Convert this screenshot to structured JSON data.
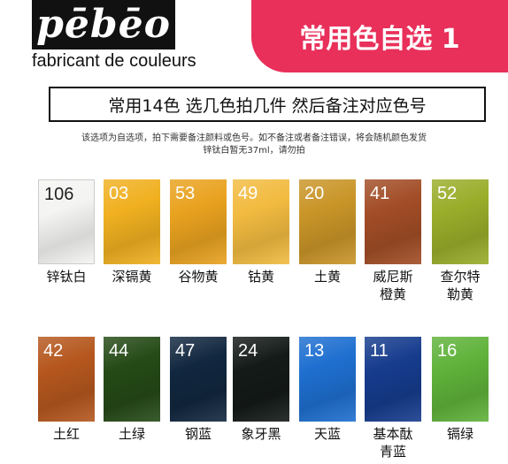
{
  "brand": {
    "logo": "pēbēo",
    "tagline": "fabricant de couleurs"
  },
  "banner": {
    "title": "常用色自选 1",
    "color": "#e8305a"
  },
  "subtitle": "常用14色  选几色拍几件  然后备注对应色号",
  "notes": [
    "该选项为自选项，拍下需要备注颜料或色号。如不备注或者备注错误，将会随机颜色发货",
    "锌钛白暂无37ml，请勿拍"
  ],
  "swatches": [
    {
      "code": "106",
      "name": "锌钛白",
      "color": "#f4f4f2"
    },
    {
      "code": "03",
      "name": "深镉黄",
      "color": "#f0b020"
    },
    {
      "code": "53",
      "name": "谷物黄",
      "color": "#e9a21f"
    },
    {
      "code": "49",
      "name": "钴黄",
      "color": "#f2bb40"
    },
    {
      "code": "20",
      "name": "土黄",
      "color": "#c99528"
    },
    {
      "code": "41",
      "name": "威尼斯\n橙黄",
      "color": "#a24d26"
    },
    {
      "code": "52",
      "name": "查尔特\n勒黄",
      "color": "#9aad2a"
    },
    {
      "code": "42",
      "name": "土红",
      "color": "#b5571e"
    },
    {
      "code": "44",
      "name": "土绿",
      "color": "#254a16"
    },
    {
      "code": "47",
      "name": "钢蓝",
      "color": "#11273f"
    },
    {
      "code": "24",
      "name": "象牙黑",
      "color": "#141a18"
    },
    {
      "code": "13",
      "name": "天蓝",
      "color": "#1e6fd0"
    },
    {
      "code": "11",
      "name": "基本酞\n青蓝",
      "color": "#163c8d"
    },
    {
      "code": "16",
      "name": "镉绿",
      "color": "#5fb23a"
    }
  ]
}
